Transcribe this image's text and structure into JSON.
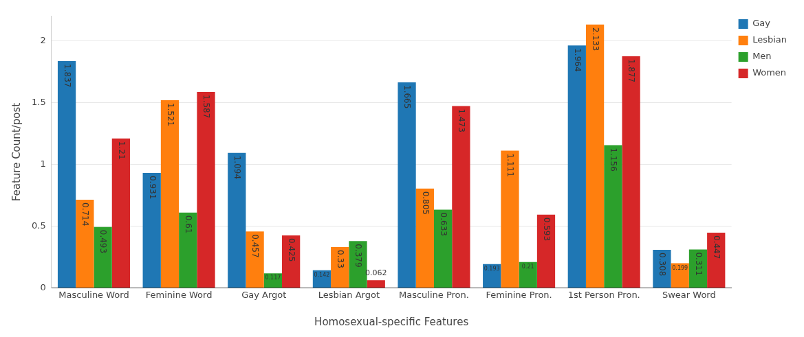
{
  "chart_data": {
    "type": "bar",
    "xlabel": "Homosexual-specific Features",
    "ylabel": "Feature Count/post",
    "categories": [
      "Masculine Word",
      "Feminine Word",
      "Gay Argot",
      "Lesbian Argot",
      "Masculine Pron.",
      "Feminine Pron.",
      "1st Person Pron.",
      "Swear Word"
    ],
    "series": [
      {
        "name": "Gay",
        "color": "#1f77b4",
        "values": [
          1.837,
          0.931,
          1.094,
          0.142,
          1.665,
          0.193,
          1.964,
          0.308
        ]
      },
      {
        "name": "Lesbian",
        "color": "#ff7f0e",
        "values": [
          0.714,
          1.521,
          0.457,
          0.33,
          0.805,
          1.111,
          2.133,
          0.199
        ]
      },
      {
        "name": "Men",
        "color": "#2ca02c",
        "values": [
          0.493,
          0.61,
          0.117,
          0.379,
          0.633,
          0.21,
          1.156,
          0.311
        ]
      },
      {
        "name": "Women",
        "color": "#d62728",
        "values": [
          1.21,
          1.587,
          0.425,
          0.062,
          1.473,
          0.593,
          1.877,
          0.447
        ]
      }
    ],
    "ylim": [
      0,
      2.2
    ],
    "yticks": [
      0,
      0.5,
      1,
      1.5,
      2
    ],
    "grid": "y",
    "legend": "top right",
    "data_labels": true
  }
}
